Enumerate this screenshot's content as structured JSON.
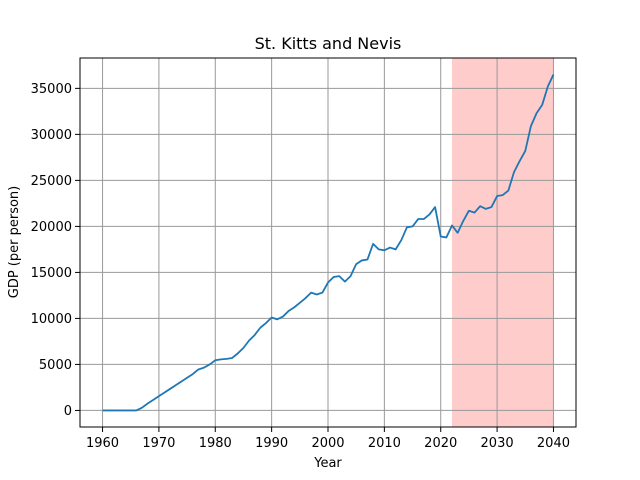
{
  "chart_data": {
    "type": "line",
    "title": "St. Kitts and Nevis",
    "xlabel": "Year",
    "ylabel": "GDP (per person)",
    "xlim": [
      1956,
      2044
    ],
    "ylim": [
      -1800,
      38300
    ],
    "xticks": [
      1960,
      1970,
      1980,
      1990,
      2000,
      2010,
      2020,
      2030,
      2040
    ],
    "yticks": [
      0,
      5000,
      10000,
      15000,
      20000,
      25000,
      30000,
      35000
    ],
    "grid": true,
    "line_color": "#1f77b4",
    "highlight": {
      "x_start": 2022,
      "x_end": 2040,
      "color": "#ffcccc"
    },
    "series": [
      {
        "x": [
          1960,
          1961,
          1962,
          1963,
          1964,
          1965,
          1966,
          1967,
          1968,
          1969,
          1970,
          1971,
          1972,
          1973,
          1974,
          1975,
          1976,
          1977,
          1978,
          1979,
          1980,
          1981,
          1982,
          1983,
          1984,
          1985,
          1986,
          1987,
          1988,
          1989,
          1990,
          1991,
          1992,
          1993,
          1994,
          1995,
          1996,
          1997,
          1998,
          1999,
          2000,
          2001,
          2002,
          2003,
          2004,
          2005,
          2006,
          2007,
          2008,
          2009,
          2010,
          2011,
          2012,
          2013,
          2014,
          2015,
          2016,
          2017,
          2018,
          2019,
          2020,
          2021,
          2022,
          2023,
          2024,
          2025,
          2026,
          2027,
          2028,
          2029,
          2030,
          2031,
          2032,
          2033,
          2034,
          2035,
          2036,
          2037,
          2038,
          2039,
          2040
        ],
        "values": [
          0,
          0,
          0,
          0,
          0,
          0,
          0,
          300,
          750,
          1150,
          1550,
          1950,
          2350,
          2750,
          3150,
          3550,
          3950,
          4450,
          4650,
          5000,
          5450,
          5550,
          5600,
          5700,
          6200,
          6800,
          7600,
          8200,
          9000,
          9500,
          10100,
          9900,
          10200,
          10800,
          11200,
          11700,
          12200,
          12800,
          12600,
          12800,
          13900,
          14500,
          14600,
          14000,
          14600,
          15900,
          16300,
          16400,
          18100,
          17500,
          17400,
          17700,
          17500,
          18500,
          19900,
          20000,
          20800,
          20800,
          21300,
          22100,
          18900,
          18800,
          20100,
          19300,
          20600,
          21700,
          21500,
          22200,
          21900,
          22100,
          23300,
          23400,
          23900,
          25900,
          27100,
          28200,
          30900,
          32300,
          33200,
          35200,
          36500
        ]
      }
    ]
  }
}
